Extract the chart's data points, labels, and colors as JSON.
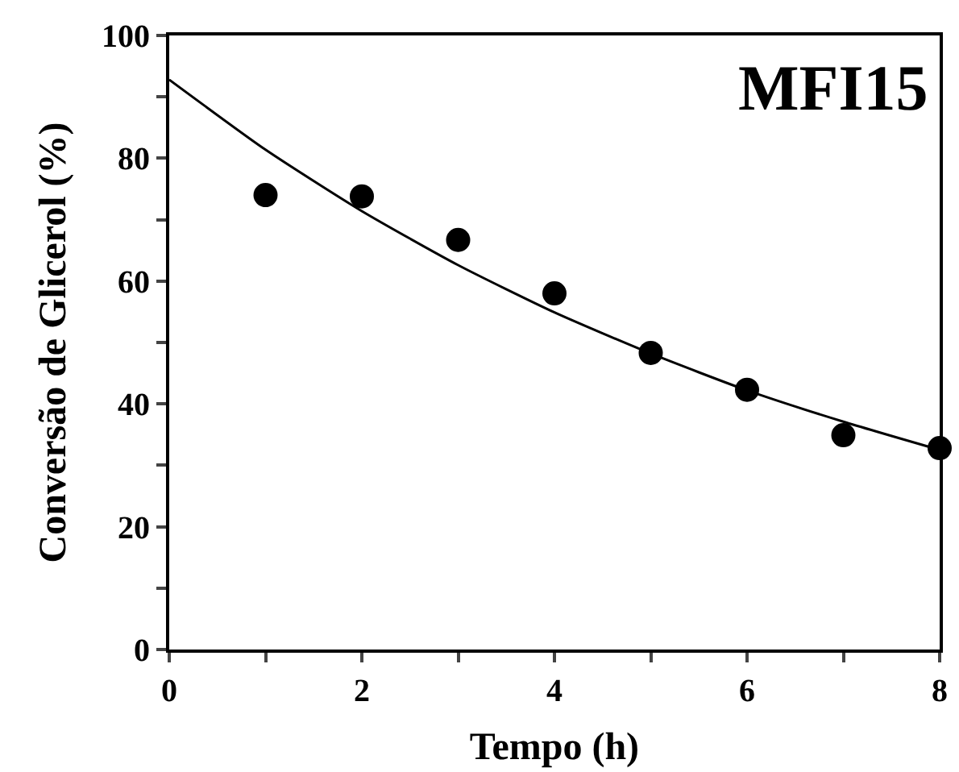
{
  "chart_data": {
    "type": "scatter",
    "xlabel": "Tempo (h)",
    "ylabel": "Conversão de Glicerol (%)",
    "annotations": [
      "MFI15"
    ],
    "xlim": [
      0,
      8
    ],
    "xticks": [
      0,
      {
        "value": 1,
        "label": null
      },
      2,
      {
        "value": 3,
        "label": null
      },
      4,
      {
        "value": 5,
        "label": null
      },
      6,
      {
        "value": 7,
        "label": null
      },
      8
    ],
    "ylim": [
      0,
      100
    ],
    "yticks": [
      0,
      {
        "value": 10,
        "label": null
      },
      20,
      {
        "value": 30,
        "label": null
      },
      40,
      {
        "value": 50,
        "label": null
      },
      60,
      {
        "value": 70,
        "label": null
      },
      80,
      {
        "value": 90,
        "label": null
      },
      100
    ],
    "grid": false,
    "legend": false,
    "marker": "circle",
    "series": [
      {
        "color": "#000000",
        "x": [
          1,
          2,
          3,
          4,
          5,
          6,
          7,
          8
        ],
        "values": [
          74.0,
          73.8,
          66.7,
          58.0,
          48.3,
          42.3,
          34.9,
          32.8
        ]
      },
      {
        "type": "line",
        "color": "#000000",
        "marker": "none",
        "line_style": "solid",
        "x": [
          0,
          1,
          2,
          3,
          4,
          5,
          6,
          7,
          8
        ],
        "values": [
          92.8,
          81.4,
          71.4,
          62.6,
          54.9,
          48.2,
          42.2,
          37.1,
          32.5
        ]
      }
    ]
  }
}
